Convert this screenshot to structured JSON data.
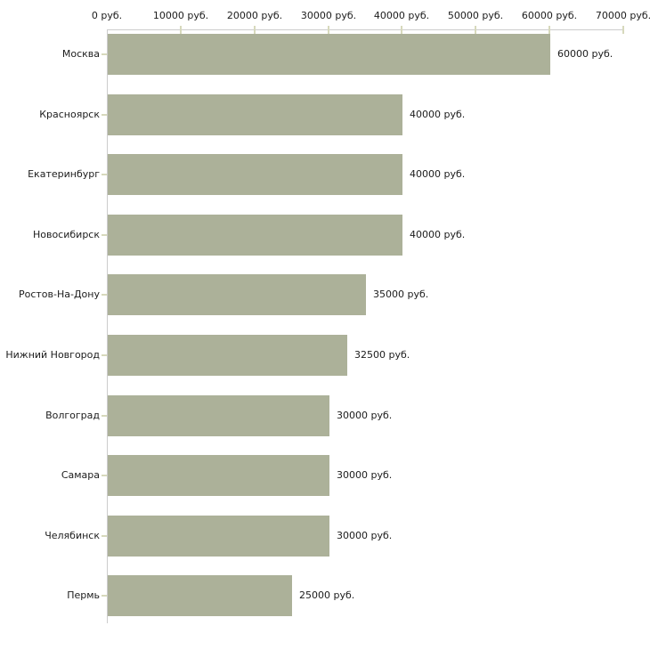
{
  "chart_data": {
    "type": "bar",
    "orientation": "horizontal",
    "title": "",
    "xlabel": "",
    "ylabel": "",
    "unit": "руб.",
    "categories": [
      "Москва",
      "Красноярск",
      "Екатеринбург",
      "Новосибирск",
      "Ростов-На-Дону",
      "Нижний Новгород",
      "Волгоград",
      "Самара",
      "Челябинск",
      "Пермь"
    ],
    "values": [
      60000,
      40000,
      40000,
      40000,
      35000,
      32500,
      30000,
      30000,
      30000,
      25000
    ],
    "value_labels": [
      "60000 руб.",
      "40000 руб.",
      "40000 руб.",
      "40000 руб.",
      "35000 руб.",
      "32500 руб.",
      "30000 руб.",
      "30000 руб.",
      "30000 руб.",
      "25000 руб."
    ],
    "x_ticks": [
      0,
      10000,
      20000,
      30000,
      40000,
      50000,
      60000,
      70000
    ],
    "x_tick_labels": [
      "0 руб.",
      "10000 руб.",
      "20000 руб.",
      "30000 руб.",
      "40000 руб.",
      "50000 руб.",
      "60000 руб.",
      "70000 руб."
    ],
    "xlim": [
      0,
      70000
    ],
    "grid": false,
    "legend": false
  },
  "colors": {
    "bar": "#acb199",
    "axis_line": "#cccccc",
    "tick_mark": "#d7d9bc",
    "text": "#1c1c1c",
    "background": "#ffffff"
  }
}
